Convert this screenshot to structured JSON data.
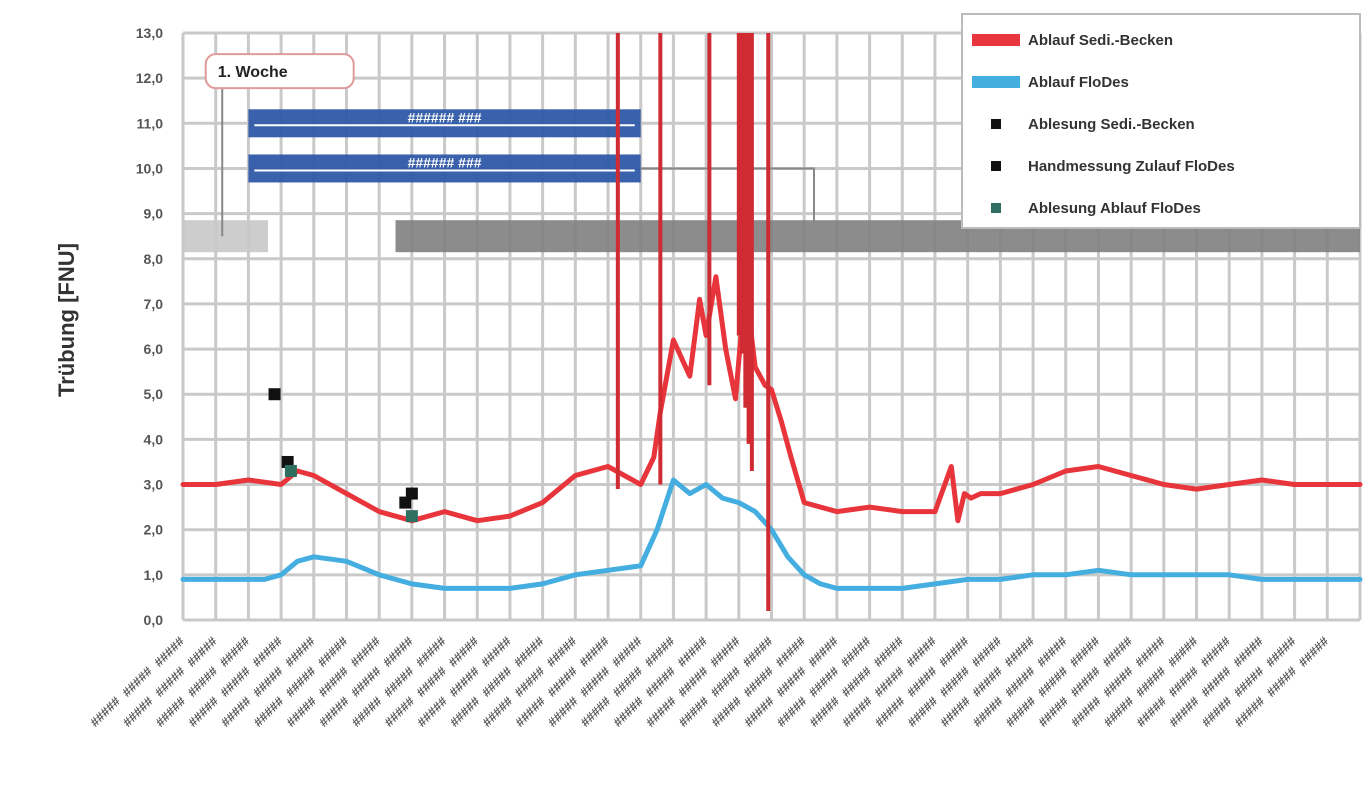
{
  "chart_data": {
    "type": "line",
    "title": "",
    "ylabel": "Trübung [FNU]",
    "xlabel": "",
    "ylim": [
      0,
      13
    ],
    "yticks": [
      "0,0",
      "1,0",
      "2,0",
      "3,0",
      "4,0",
      "5,0",
      "6,0",
      "7,0",
      "8,0",
      "9,0",
      "10,0",
      "11,0",
      "12,0",
      "13,0"
    ],
    "grid": true,
    "legend_position": "top-right",
    "x_tick_count": 36,
    "x_tick_label": "#####",
    "series": [
      {
        "name": "Ablauf Sedi.-Becken",
        "kind": "line",
        "color": "#e8343b",
        "x": [
          0,
          1,
          2,
          3,
          3.5,
          4,
          5,
          6,
          7,
          8,
          9,
          10,
          11,
          12,
          13,
          14,
          14.4,
          14.6,
          15,
          15.5,
          15.8,
          16,
          16.3,
          16.6,
          16.9,
          17.2,
          17.5,
          17.8,
          18,
          18.3,
          18.6,
          19,
          20,
          21,
          22,
          23,
          23.5,
          23.7,
          23.9,
          24.1,
          24.4,
          25,
          26,
          27,
          28,
          29,
          30,
          31,
          32,
          33,
          34,
          35,
          36
        ],
        "y": [
          3.0,
          3.0,
          3.1,
          3.0,
          3.3,
          3.2,
          2.8,
          2.4,
          2.2,
          2.4,
          2.2,
          2.3,
          2.6,
          3.2,
          3.4,
          3.0,
          3.6,
          4.6,
          6.2,
          5.4,
          7.1,
          6.3,
          7.6,
          6.0,
          4.9,
          7.4,
          5.6,
          5.2,
          5.1,
          4.4,
          3.6,
          2.6,
          2.4,
          2.5,
          2.4,
          2.4,
          3.4,
          2.2,
          2.8,
          2.7,
          2.8,
          2.8,
          3.0,
          3.3,
          3.4,
          3.2,
          3.0,
          2.9,
          3.0,
          3.1,
          3.0,
          3.0,
          3.0
        ]
      },
      {
        "name": "Ablauf FloDes",
        "kind": "line",
        "color": "#45aee0",
        "x": [
          0,
          1,
          2,
          2.5,
          3,
          3.5,
          4,
          5,
          6,
          6.5,
          7,
          8,
          9,
          10,
          11,
          12,
          13,
          14,
          14.5,
          15,
          15.5,
          16,
          16.5,
          17,
          17.5,
          18,
          18.5,
          19,
          19.5,
          20,
          21,
          22,
          23,
          24,
          25,
          26,
          27,
          28,
          29,
          30,
          31,
          32,
          33,
          34,
          35,
          36
        ],
        "y": [
          0.9,
          0.9,
          0.9,
          0.9,
          1.0,
          1.3,
          1.4,
          1.3,
          1.0,
          0.9,
          0.8,
          0.7,
          0.7,
          0.7,
          0.8,
          1.0,
          1.1,
          1.2,
          2.0,
          3.1,
          2.8,
          3.0,
          2.7,
          2.6,
          2.4,
          2.0,
          1.4,
          1.0,
          0.8,
          0.7,
          0.7,
          0.7,
          0.8,
          0.9,
          0.9,
          1.0,
          1.0,
          1.1,
          1.0,
          1.0,
          1.0,
          1.0,
          0.9,
          0.9,
          0.9,
          0.9
        ]
      },
      {
        "name": "Ablesung Sedi.-Becken",
        "kind": "points",
        "color": "#111111",
        "x": [
          3.2,
          7.0
        ],
        "y": [
          3.5,
          2.8
        ]
      },
      {
        "name": "Handmessung Zulauf FloDes",
        "kind": "points",
        "color": "#111111",
        "x": [
          2.8,
          6.8
        ],
        "y": [
          5.0,
          2.6
        ]
      },
      {
        "name": "Ablesung Ablauf FloDes",
        "kind": "points",
        "color": "#2e6f62",
        "x": [
          3.3,
          7.0
        ],
        "y": [
          3.3,
          2.3
        ]
      }
    ],
    "spikes": {
      "color": "#d02a33",
      "x": [
        13.3,
        14.6,
        16.1,
        17.0,
        17.1,
        17.2,
        17.3,
        17.4,
        17.9
      ],
      "top": [
        13.0,
        13.0,
        13.0,
        13.0,
        13.0,
        13.0,
        13.0,
        13.0,
        13.0
      ],
      "bottom": [
        2.9,
        3.0,
        5.2,
        6.3,
        5.9,
        4.7,
        3.9,
        3.3,
        0.2
      ]
    },
    "bands": [
      {
        "label": "###### ###",
        "color": "#2f5aa8",
        "x_start": 2.0,
        "x_end": 14.0,
        "y": 11.0
      },
      {
        "label": "###### ###",
        "color": "#2f5aa8",
        "x_start": 2.0,
        "x_end": 14.0,
        "y": 10.0
      },
      {
        "label": "",
        "color": "#c8c8c8",
        "x_start": 0.0,
        "x_end": 2.6,
        "y": 8.5
      },
      {
        "label": "",
        "color": "#808080",
        "x_start": 6.5,
        "x_end": 36.0,
        "y": 8.5
      }
    ],
    "annotation": {
      "text": "1. Woche",
      "x": 1.0,
      "y": 12.2
    }
  }
}
